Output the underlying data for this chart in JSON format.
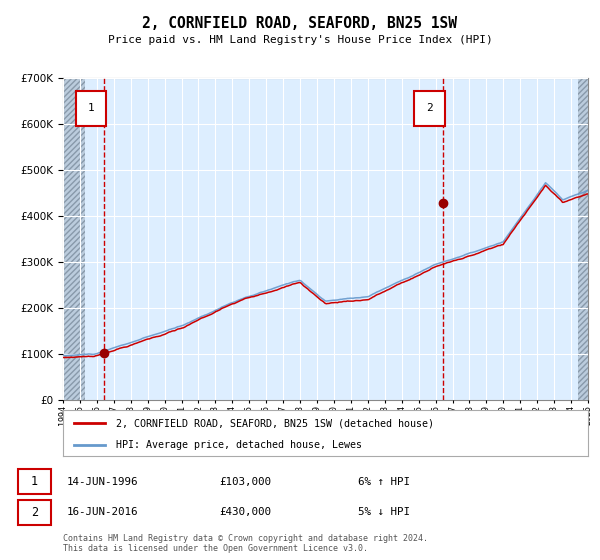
{
  "title": "2, CORNFIELD ROAD, SEAFORD, BN25 1SW",
  "subtitle": "Price paid vs. HM Land Registry's House Price Index (HPI)",
  "legend_line1": "2, CORNFIELD ROAD, SEAFORD, BN25 1SW (detached house)",
  "legend_line2": "HPI: Average price, detached house, Lewes",
  "sale1_date": "14-JUN-1996",
  "sale1_price": 103000,
  "sale1_pct": "6% ↑ HPI",
  "sale2_date": "16-JUN-2016",
  "sale2_price": 430000,
  "sale2_pct": "5% ↓ HPI",
  "hpi_color": "#6699cc",
  "price_color": "#cc0000",
  "dot_color": "#990000",
  "vline_color": "#cc0000",
  "background_color": "#ddeeff",
  "ylim": [
    0,
    700000
  ],
  "start_year": 1994,
  "end_year": 2025,
  "note": "Contains HM Land Registry data © Crown copyright and database right 2024.\nThis data is licensed under the Open Government Licence v3.0.",
  "sale1_year": 1996.45,
  "sale2_year": 2016.45
}
